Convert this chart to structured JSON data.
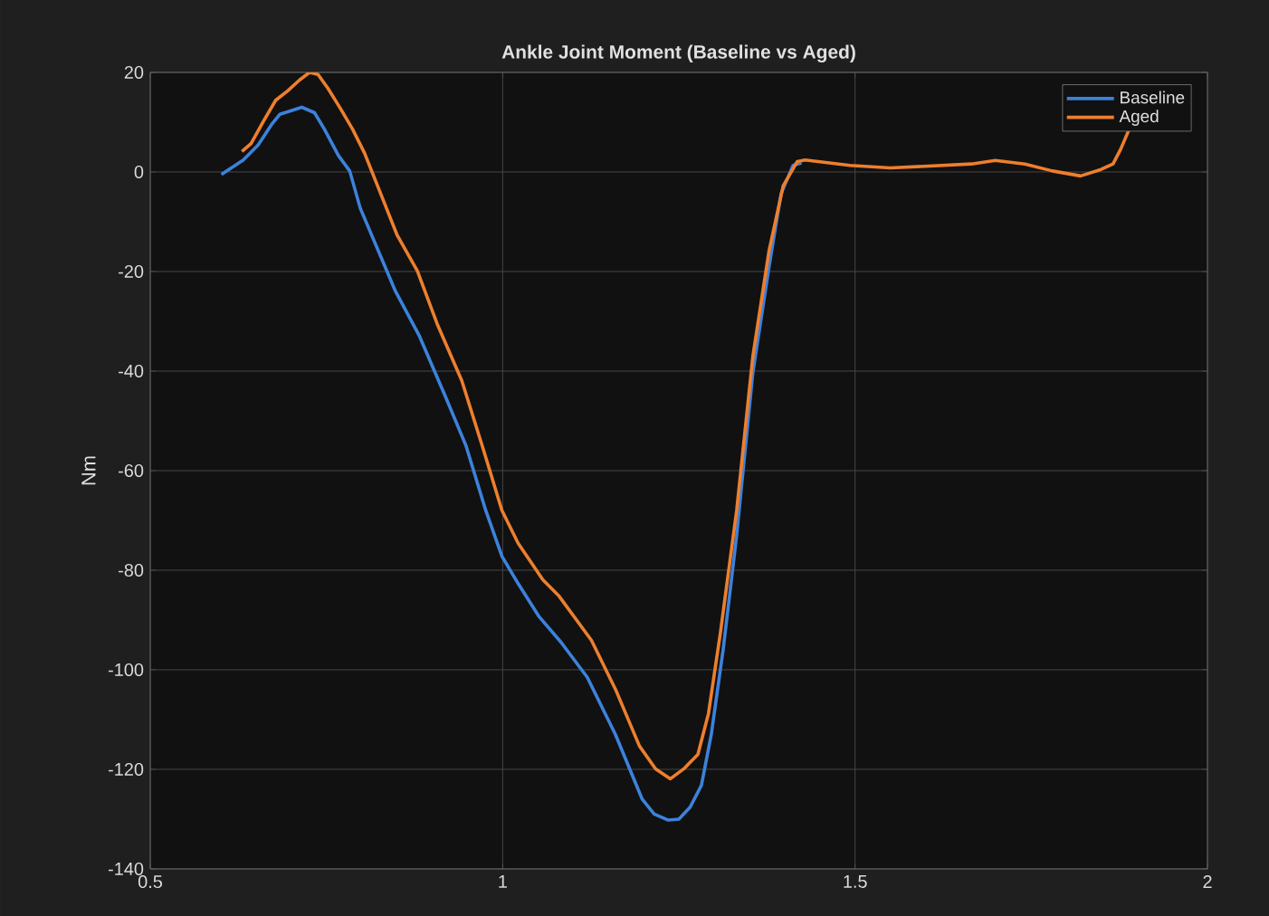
{
  "chart_data": {
    "type": "line",
    "title": "Ankle Joint Moment (Baseline vs Aged)",
    "ylabel": "Nm",
    "xlim": [
      0.5,
      2
    ],
    "xticks": [
      0.5,
      1,
      1.5,
      2
    ],
    "ylim": [
      -140,
      20
    ],
    "yticks": [
      -140,
      -120,
      -100,
      -80,
      -60,
      -40,
      -20,
      0,
      20
    ],
    "grid": true,
    "legend": "top right",
    "marker": "none",
    "line_style": "solid",
    "series": [
      {
        "name": "Baseline",
        "color": "#3c82dc",
        "x": [
          0.601,
          0.632,
          0.653,
          0.672,
          0.684,
          0.715,
          0.733,
          0.747,
          0.767,
          0.783,
          0.798,
          0.848,
          0.882,
          0.919,
          0.948,
          0.976,
          0.999,
          1.022,
          1.051,
          1.083,
          1.12,
          1.16,
          1.198,
          1.215,
          1.235,
          1.25,
          1.266,
          1.282,
          1.296,
          1.313,
          1.332,
          1.355,
          1.378,
          1.395,
          1.412,
          1.424
        ],
        "values": [
          -0.5,
          2.4,
          5.4,
          9.5,
          11.6,
          13,
          11.9,
          8.6,
          3.3,
          0.2,
          -7.3,
          -24,
          -33,
          -45.2,
          -55,
          -68,
          -77.2,
          -82.7,
          -89.2,
          -94.5,
          -101.5,
          -113,
          -126,
          -129,
          -130.2,
          -130,
          -127.6,
          -123.2,
          -113,
          -95.8,
          -73,
          -40.3,
          -19,
          -4.4,
          1.3,
          1.8
        ]
      },
      {
        "name": "Aged",
        "color": "#ee7f2d",
        "x": [
          0.63,
          0.643,
          0.661,
          0.678,
          0.695,
          0.712,
          0.726,
          0.738,
          0.752,
          0.77,
          0.787,
          0.804,
          0.827,
          0.85,
          0.879,
          0.907,
          0.942,
          0.971,
          0.999,
          1.022,
          1.057,
          1.08,
          1.126,
          1.16,
          1.194,
          1.217,
          1.238,
          1.257,
          1.277,
          1.292,
          1.309,
          1.332,
          1.355,
          1.378,
          1.398,
          1.418,
          1.429,
          1.493,
          1.55,
          1.665,
          1.699,
          1.741,
          1.78,
          1.82,
          1.849,
          1.866,
          1.877,
          1.889
        ],
        "values": [
          4.1,
          5.7,
          10.3,
          14.4,
          16.3,
          18.5,
          20,
          19.6,
          16.8,
          12.7,
          8.6,
          3.8,
          -4.4,
          -12.6,
          -19.9,
          -30.5,
          -41.9,
          -55,
          -68,
          -74.6,
          -81.9,
          -85.2,
          -94.1,
          -103.9,
          -115.3,
          -119.9,
          -121.9,
          -119.9,
          -117,
          -108.8,
          -92.5,
          -68,
          -37,
          -15.8,
          -2.8,
          2.1,
          2.4,
          1.3,
          0.8,
          1.6,
          2.3,
          1.6,
          0.2,
          -0.8,
          0.5,
          1.6,
          4.6,
          8.6
        ]
      }
    ]
  }
}
